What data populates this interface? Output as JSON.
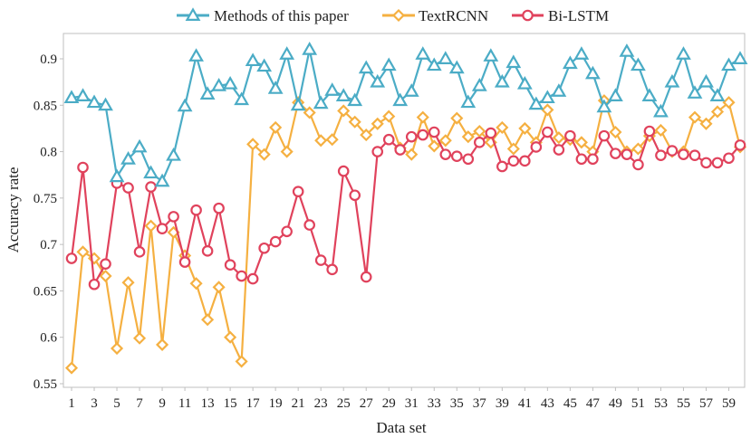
{
  "chart_data": {
    "type": "line",
    "title": "",
    "xlabel": "Data set",
    "ylabel": "Accuracy rate",
    "ylim": [
      0.55,
      0.9
    ],
    "yticks": [
      "0.55",
      "0.6",
      "0.65",
      "0.7",
      "0.75",
      "0.8",
      "0.85",
      "0.9"
    ],
    "xticks": [
      "1",
      "3",
      "5",
      "7",
      "9",
      "11",
      "13",
      "15",
      "17",
      "19",
      "21",
      "23",
      "25",
      "27",
      "29",
      "31",
      "33",
      "35",
      "37",
      "39",
      "41",
      "43",
      "45",
      "47",
      "49",
      "51",
      "53",
      "55",
      "57",
      "59"
    ],
    "x": [
      1,
      2,
      3,
      4,
      5,
      6,
      7,
      8,
      9,
      10,
      11,
      12,
      13,
      14,
      15,
      16,
      17,
      18,
      19,
      20,
      21,
      22,
      23,
      24,
      25,
      26,
      27,
      28,
      29,
      30,
      31,
      32,
      33,
      34,
      35,
      36,
      37,
      38,
      39,
      40,
      41,
      42,
      43,
      44,
      45,
      46,
      47,
      48,
      49,
      50,
      51,
      52,
      53,
      54,
      55,
      56,
      57,
      58,
      59,
      60
    ],
    "grid": false,
    "legend_position": "top",
    "series": [
      {
        "name": "Methods of this paper",
        "color": "#4bacc6",
        "marker": "triangle",
        "values": [
          0.858,
          0.86,
          0.853,
          0.85,
          0.773,
          0.792,
          0.805,
          0.777,
          0.768,
          0.796,
          0.849,
          0.903,
          0.862,
          0.871,
          0.873,
          0.856,
          0.898,
          0.892,
          0.868,
          0.905,
          0.85,
          0.91,
          0.852,
          0.866,
          0.86,
          0.855,
          0.89,
          0.875,
          0.893,
          0.855,
          0.865,
          0.905,
          0.893,
          0.9,
          0.89,
          0.853,
          0.871,
          0.903,
          0.875,
          0.896,
          0.873,
          0.851,
          0.858,
          0.865,
          0.895,
          0.905,
          0.884,
          0.848,
          0.86,
          0.908,
          0.893,
          0.86,
          0.843,
          0.875,
          0.905,
          0.863,
          0.875,
          0.86,
          0.893,
          0.9
        ]
      },
      {
        "name": "TextRCNN",
        "color": "#f5b041",
        "marker": "diamond",
        "values": [
          0.567,
          0.692,
          0.685,
          0.666,
          0.588,
          0.659,
          0.599,
          0.72,
          0.592,
          0.713,
          0.688,
          0.658,
          0.619,
          0.654,
          0.6,
          0.574,
          0.808,
          0.797,
          0.826,
          0.8,
          0.853,
          0.842,
          0.812,
          0.813,
          0.844,
          0.832,
          0.818,
          0.83,
          0.838,
          0.804,
          0.797,
          0.837,
          0.806,
          0.812,
          0.836,
          0.816,
          0.822,
          0.81,
          0.826,
          0.803,
          0.825,
          0.81,
          0.845,
          0.815,
          0.813,
          0.81,
          0.8,
          0.855,
          0.821,
          0.8,
          0.803,
          0.817,
          0.823,
          0.8,
          0.8,
          0.837,
          0.83,
          0.843,
          0.853,
          0.805
        ]
      },
      {
        "name": "Bi-LSTM",
        "color": "#e0425c",
        "marker": "circle",
        "values": [
          0.685,
          0.783,
          0.657,
          0.679,
          0.766,
          0.761,
          0.692,
          0.762,
          0.717,
          0.73,
          0.681,
          0.737,
          0.693,
          0.739,
          0.678,
          0.666,
          0.663,
          0.696,
          0.703,
          0.714,
          0.757,
          0.721,
          0.683,
          0.673,
          0.779,
          0.753,
          0.665,
          0.8,
          0.813,
          0.802,
          0.816,
          0.818,
          0.821,
          0.797,
          0.795,
          0.792,
          0.81,
          0.82,
          0.784,
          0.79,
          0.79,
          0.805,
          0.821,
          0.802,
          0.817,
          0.792,
          0.792,
          0.817,
          0.798,
          0.797,
          0.786,
          0.822,
          0.796,
          0.801,
          0.797,
          0.796,
          0.788,
          0.788,
          0.793,
          0.807
        ]
      }
    ]
  }
}
